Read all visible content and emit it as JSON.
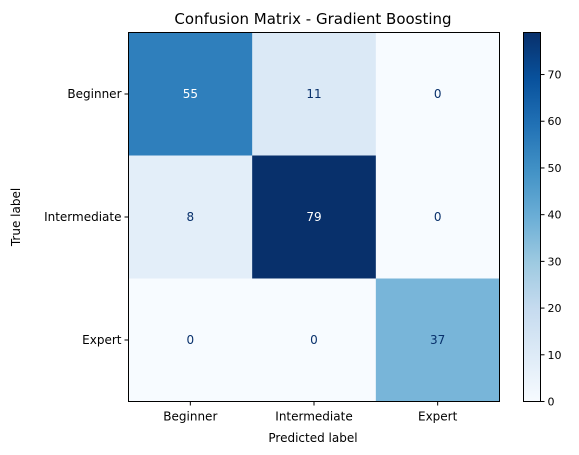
{
  "chart_data": {
    "type": "heatmap",
    "title": "Confusion Matrix - Gradient Boosting",
    "xlabel": "Predicted label",
    "ylabel": "True label",
    "x_categories": [
      "Beginner",
      "Intermediate",
      "Expert"
    ],
    "y_categories": [
      "Beginner",
      "Intermediate",
      "Expert"
    ],
    "values": [
      [
        55,
        11,
        0
      ],
      [
        8,
        79,
        0
      ],
      [
        0,
        0,
        37
      ]
    ],
    "colormap": "Blues",
    "colorbar": {
      "range": [
        0,
        79
      ],
      "ticks": [
        0,
        10,
        20,
        30,
        40,
        50,
        60,
        70
      ]
    },
    "grid": false
  }
}
